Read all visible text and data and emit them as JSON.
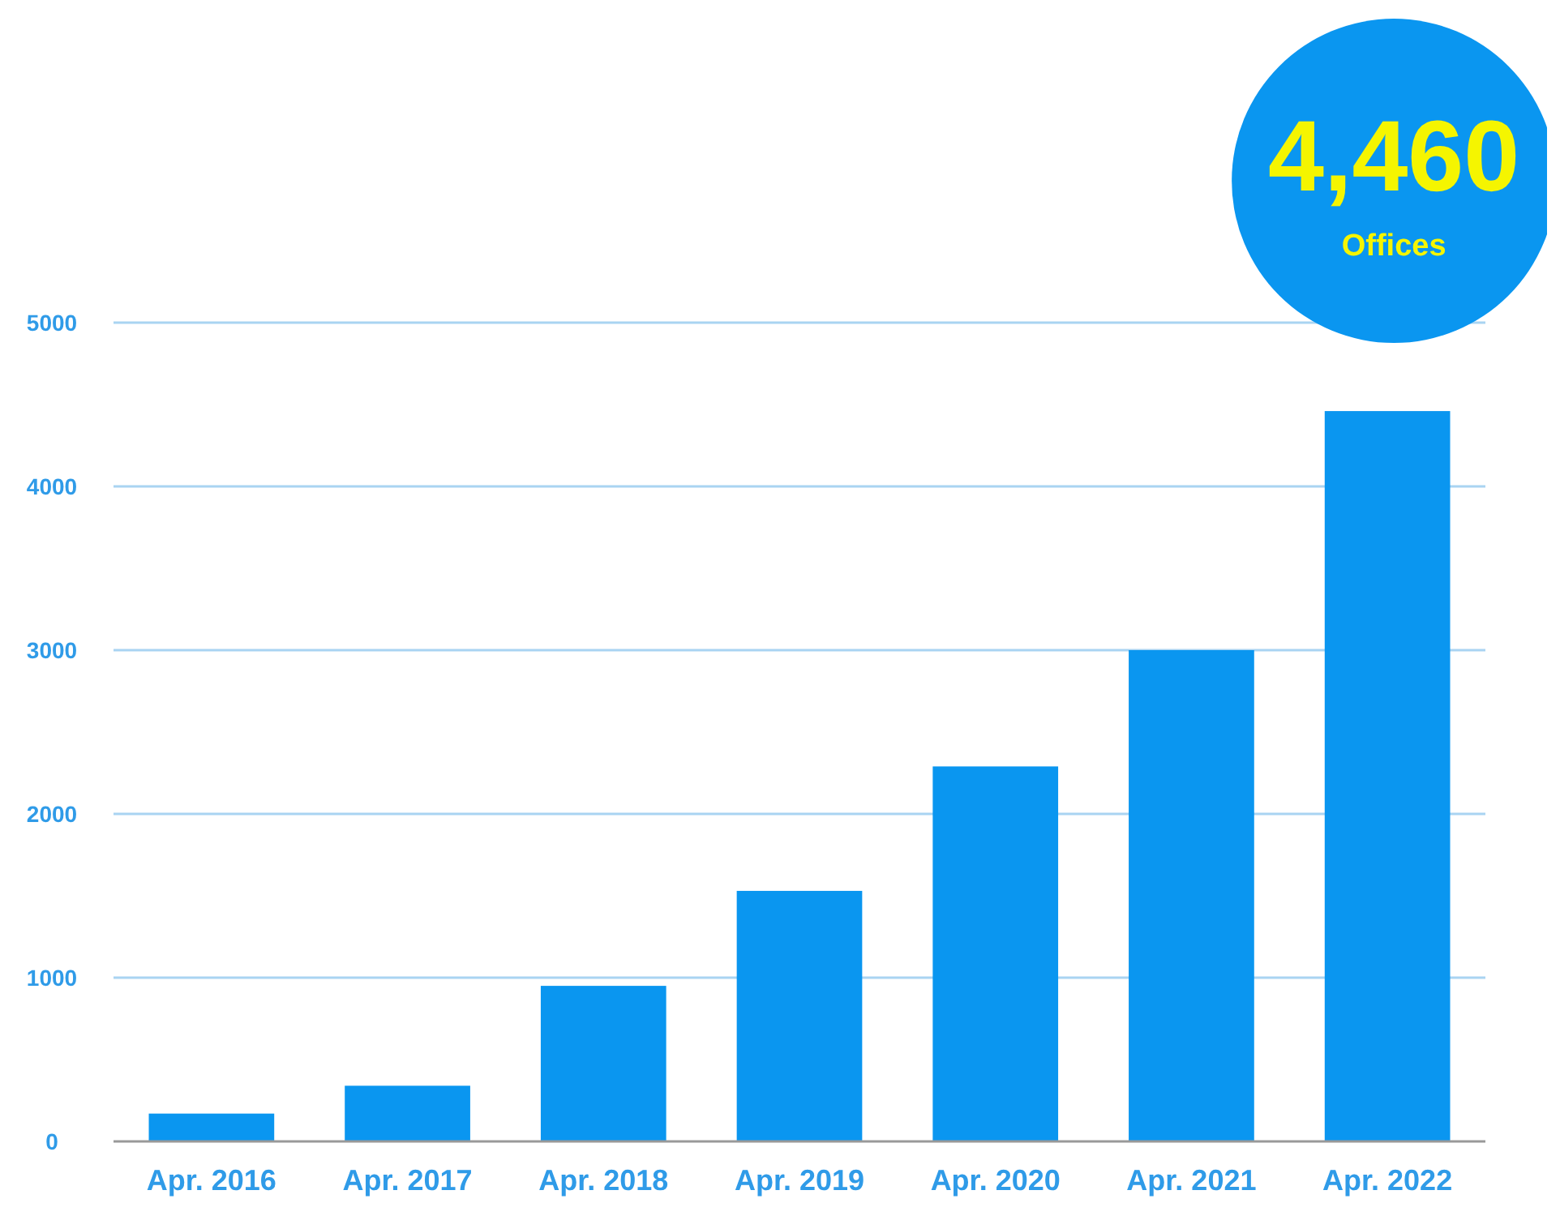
{
  "chart_data": {
    "type": "bar",
    "categories": [
      "Apr. 2016",
      "Apr. 2017",
      "Apr. 2018",
      "Apr. 2019",
      "Apr. 2020",
      "Apr. 2021",
      "Apr. 2022"
    ],
    "values": [
      170,
      340,
      950,
      1530,
      2290,
      3000,
      4460
    ],
    "color": "#0a96f0",
    "ylim": [
      0,
      5000
    ],
    "yticks": [
      0,
      1000,
      2000,
      3000,
      4000,
      5000
    ],
    "grid": "y",
    "annotations": [
      {
        "text": "4,460",
        "x": "Apr. 2022",
        "y": 4460
      },
      "Offices"
    ]
  }
}
